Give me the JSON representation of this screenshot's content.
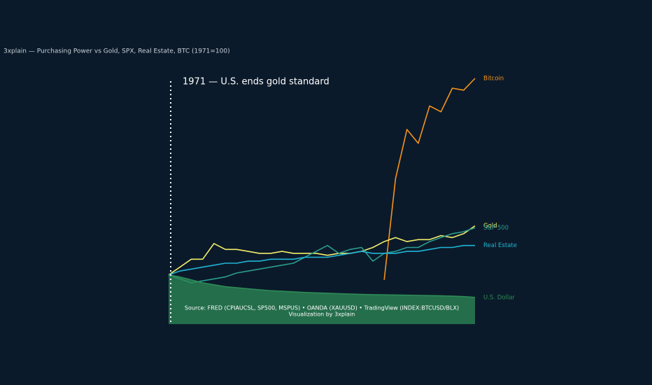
{
  "chart_data": {
    "type": "line",
    "title": "3xplain — Purchasing Power vs Gold, SPX, Real Estate, BTC (1971=100)",
    "annotation": "1971 — U.S. ends gold standard",
    "source": "Source: FRED (CPIAUCSL, SP500, MSPUS) • OANDA (XAUUSD) • TradingView (INDEX:BTCUSD/BLX)",
    "credit": "Visualization by 3xplain",
    "ylim": [
      -25,
      100
    ],
    "series": [
      {
        "name": "Bitcoin",
        "color": "#f7931a",
        "values": [
          null,
          null,
          null,
          null,
          null,
          null,
          null,
          null,
          null,
          null,
          null,
          null,
          null,
          null,
          null,
          null,
          null,
          null,
          null,
          -2.5,
          49,
          74,
          67,
          86,
          83,
          95,
          94,
          100
        ]
      },
      {
        "name": "Gold",
        "color": "#f2ee6b",
        "values": [
          0,
          4,
          8,
          8,
          16,
          13,
          13,
          12,
          11,
          11,
          12,
          11,
          11,
          11,
          10,
          11,
          11,
          12,
          14,
          17,
          19,
          17,
          18,
          18,
          20,
          19,
          21,
          25
        ]
      },
      {
        "name": "S&P 500",
        "color": "#2a9d8f",
        "values": [
          0,
          -2,
          -4,
          -3,
          -2,
          -1,
          1,
          2,
          3,
          4,
          5,
          6,
          9,
          12,
          15,
          11,
          13,
          14,
          7,
          11,
          12,
          14,
          14,
          17,
          19,
          21,
          22,
          24
        ]
      },
      {
        "name": "Real Estate",
        "color": "#1fb5d6",
        "values": [
          0,
          2,
          3,
          4,
          5,
          6,
          6,
          7,
          7,
          8,
          8,
          8,
          9,
          9,
          9,
          10,
          11,
          12,
          11,
          11,
          11,
          12,
          12,
          13,
          14,
          14,
          15,
          15
        ]
      },
      {
        "name": "U.S. Dollar",
        "color": "#2e8b57",
        "area": true,
        "values": [
          0,
          -1,
          -2.5,
          -4,
          -5,
          -6,
          -6.5,
          -7,
          -7.5,
          -8,
          -8.3,
          -8.6,
          -8.9,
          -9.1,
          -9.3,
          -9.5,
          -9.7,
          -9.9,
          -10,
          -10.1,
          -10.2,
          -10.3,
          -10.4,
          -10.5,
          -10.6,
          -10.8,
          -11,
          -11.4
        ]
      }
    ]
  }
}
